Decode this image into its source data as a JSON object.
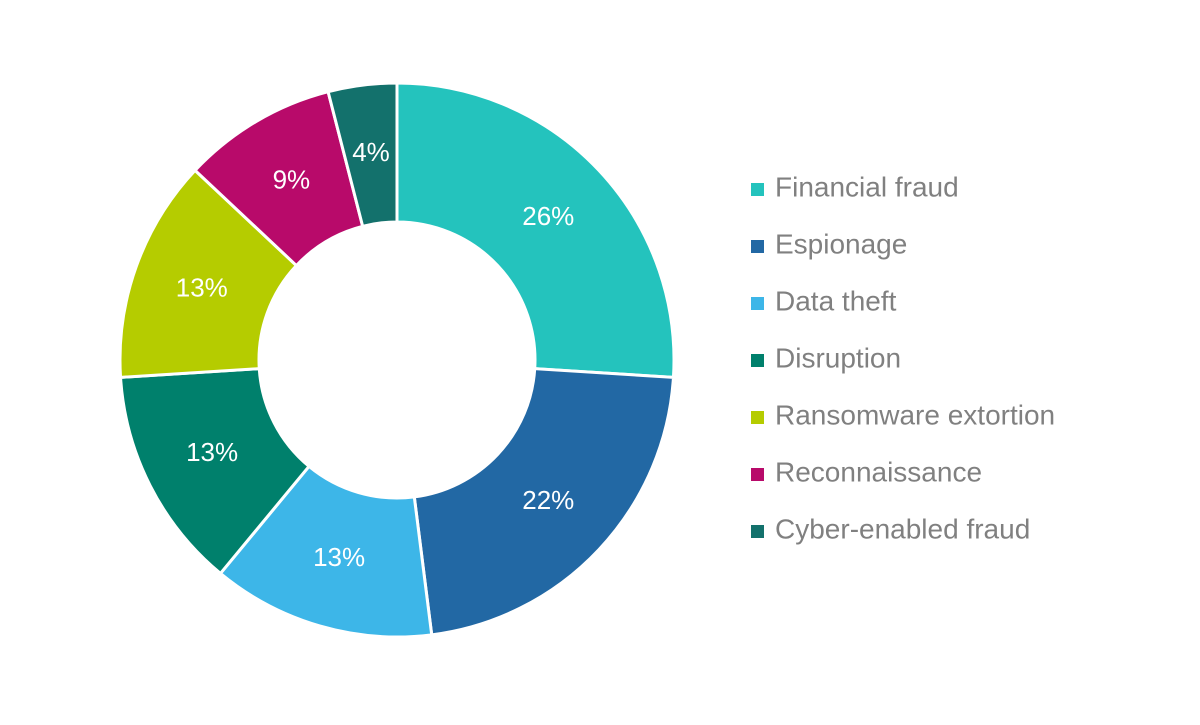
{
  "chart_data": {
    "type": "donut",
    "categories": [
      "Financial fraud",
      "Espionage",
      "Data theft",
      "Disruption",
      "Ransomware extortion",
      "Reconnaissance",
      "Cyber-enabled fraud"
    ],
    "values": [
      26,
      22,
      13,
      13,
      13,
      9,
      4
    ],
    "value_labels": [
      "26%",
      "22%",
      "13%",
      "13%",
      "13%",
      "9%",
      "4%"
    ],
    "colors": [
      "#24c3bd",
      "#2268a4",
      "#3db6e8",
      "#00806c",
      "#b5cc00",
      "#b80a6a",
      "#13716c"
    ],
    "legend": "right"
  }
}
